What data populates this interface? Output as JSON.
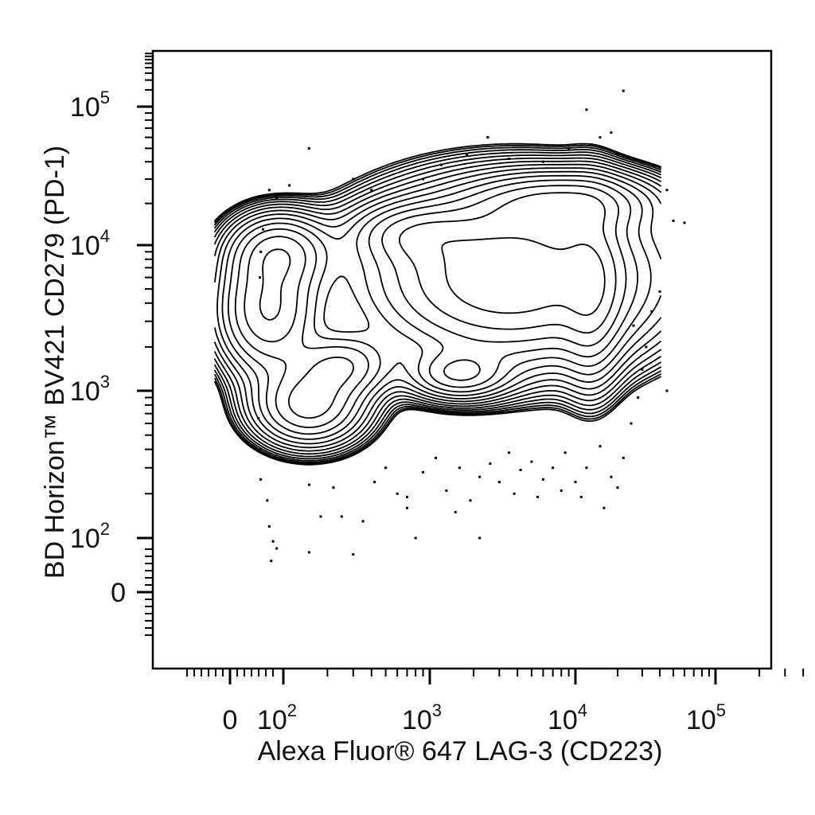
{
  "chart_data": {
    "type": "contour",
    "xlabel": "Alexa Fluor® 647 LAG-3 (CD223)",
    "ylabel": "BD Horizon™ BV421 CD279 (PD-1)",
    "x_scale": "biexponential",
    "y_scale": "biexponential",
    "xlim": [
      -300,
      250000
    ],
    "ylim": [
      -300,
      200000
    ],
    "x_ticks": [
      {
        "value": 0,
        "base": "0",
        "exp": ""
      },
      {
        "value": 100,
        "base": "10",
        "exp": "2"
      },
      {
        "value": 1000,
        "base": "10",
        "exp": "3"
      },
      {
        "value": 10000,
        "base": "10",
        "exp": "4"
      },
      {
        "value": 100000,
        "base": "10",
        "exp": "5"
      }
    ],
    "y_ticks": [
      {
        "value": 0,
        "base": "0",
        "exp": ""
      },
      {
        "value": 100,
        "base": "10",
        "exp": "2"
      },
      {
        "value": 1000,
        "base": "10",
        "exp": "3"
      },
      {
        "value": 10000,
        "base": "10",
        "exp": "4"
      },
      {
        "value": 100000,
        "base": "10",
        "exp": "5"
      }
    ],
    "populations": [
      {
        "x": 3500,
        "y": 6000,
        "spread_x": 0.55,
        "spread_y": 0.32,
        "weight": 1.0
      },
      {
        "x": 8000,
        "y": 20000,
        "spread_x": 0.35,
        "spread_y": 0.12,
        "weight": 0.45
      },
      {
        "x": 13000,
        "y": 5000,
        "spread_x": 0.12,
        "spread_y": 0.35,
        "weight": 0.35
      },
      {
        "x": 1600,
        "y": 1300,
        "spread_x": 0.2,
        "spread_y": 0.1,
        "weight": 0.35
      },
      {
        "x": 60,
        "y": 3600,
        "spread_x": 0.2,
        "spread_y": 0.25,
        "weight": 0.55
      },
      {
        "x": 90,
        "y": 9000,
        "spread_x": 0.2,
        "spread_y": 0.15,
        "weight": 0.4
      },
      {
        "x": 250,
        "y": 1500,
        "spread_x": 0.2,
        "spread_y": 0.13,
        "weight": 0.35
      },
      {
        "x": 150,
        "y": 800,
        "spread_x": 0.22,
        "spread_y": 0.16,
        "weight": 0.45
      },
      {
        "x": 800,
        "y": 12000,
        "spread_x": 0.25,
        "spread_y": 0.12,
        "weight": 0.3
      }
    ],
    "contour_levels": 16,
    "outlier_points": [
      [
        40,
        250
      ],
      [
        55,
        180
      ],
      [
        60,
        120
      ],
      [
        70,
        90
      ],
      [
        80,
        70
      ],
      [
        150,
        60
      ],
      [
        180,
        140
      ],
      [
        220,
        220
      ],
      [
        300,
        55
      ],
      [
        350,
        130
      ],
      [
        420,
        240
      ],
      [
        500,
        300
      ],
      [
        600,
        200
      ],
      [
        700,
        160
      ],
      [
        900,
        280
      ],
      [
        1100,
        350
      ],
      [
        1300,
        210
      ],
      [
        1600,
        300
      ],
      [
        1900,
        180
      ],
      [
        2200,
        260
      ],
      [
        2600,
        320
      ],
      [
        3000,
        240
      ],
      [
        3500,
        380
      ],
      [
        4200,
        290
      ],
      [
        5000,
        330
      ],
      [
        6000,
        250
      ],
      [
        7000,
        300
      ],
      [
        8500,
        380
      ],
      [
        10000,
        240
      ],
      [
        12000,
        300
      ],
      [
        15000,
        420
      ],
      [
        18000,
        260
      ],
      [
        22000,
        350
      ],
      [
        25000,
        600
      ],
      [
        28000,
        900
      ],
      [
        30000,
        1400
      ],
      [
        32000,
        2000
      ],
      [
        26000,
        2800
      ],
      [
        35000,
        3500
      ],
      [
        40000,
        4800
      ],
      [
        45000,
        1000
      ],
      [
        50000,
        15000
      ],
      [
        60000,
        14500
      ],
      [
        45000,
        25000
      ],
      [
        30000,
        40000
      ],
      [
        20000,
        45000
      ],
      [
        18000,
        65000
      ],
      [
        15000,
        60000
      ],
      [
        22000,
        130000
      ],
      [
        12000,
        95000
      ],
      [
        9000,
        50000
      ],
      [
        6000,
        40000
      ],
      [
        3500,
        42000
      ],
      [
        2500,
        60000
      ],
      [
        1800,
        45000
      ],
      [
        1200,
        38000
      ],
      [
        900,
        30000
      ],
      [
        400,
        25000
      ],
      [
        300,
        30000
      ],
      [
        150,
        50000
      ],
      [
        110,
        27000
      ],
      [
        80,
        22000
      ],
      [
        60,
        25000
      ],
      [
        45,
        13000
      ],
      [
        40,
        9000
      ],
      [
        38,
        6000
      ],
      [
        40,
        400
      ],
      [
        35,
        650
      ],
      [
        150,
        230
      ],
      [
        250,
        140
      ],
      [
        800,
        100
      ],
      [
        1500,
        150
      ],
      [
        2200,
        100
      ],
      [
        3800,
        200
      ],
      [
        5500,
        190
      ],
      [
        8000,
        210
      ],
      [
        11000,
        190
      ],
      [
        16000,
        160
      ],
      [
        20000,
        220
      ],
      [
        65,
        40
      ],
      [
        700,
        190
      ]
    ]
  }
}
